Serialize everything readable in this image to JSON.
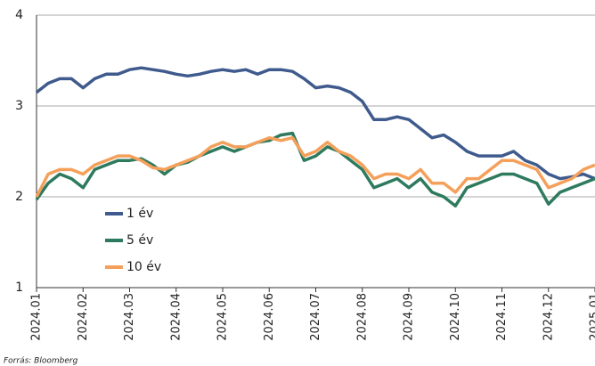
{
  "chart_data": {
    "type": "line",
    "categories": [
      "2024.01",
      null,
      null,
      null,
      "2024.02",
      null,
      null,
      null,
      "2024.03",
      null,
      null,
      null,
      "2024.04",
      null,
      null,
      null,
      "2024.05",
      null,
      null,
      null,
      "2024.06",
      null,
      null,
      null,
      "2024.07",
      null,
      null,
      null,
      "2024.08",
      null,
      null,
      null,
      "2024.09",
      null,
      null,
      null,
      "2024.10",
      null,
      null,
      null,
      "2024.11",
      null,
      null,
      null,
      "2024.12",
      null,
      null,
      null,
      "2025.01"
    ],
    "series": [
      {
        "name": "1 év",
        "color": "#3f5a8c",
        "values": [
          3.15,
          3.25,
          3.3,
          3.3,
          3.2,
          3.3,
          3.35,
          3.35,
          3.4,
          3.42,
          3.4,
          3.38,
          3.35,
          3.33,
          3.35,
          3.38,
          3.4,
          3.38,
          3.4,
          3.35,
          3.4,
          3.4,
          3.38,
          3.3,
          3.2,
          3.22,
          3.2,
          3.15,
          3.05,
          2.85,
          2.85,
          2.88,
          2.85,
          2.75,
          2.65,
          2.68,
          2.6,
          2.5,
          2.45,
          2.45,
          2.45,
          2.5,
          2.4,
          2.35,
          2.25,
          2.2,
          2.22,
          2.25,
          2.2
        ]
      },
      {
        "name": "5 év",
        "color": "#2e7a5e",
        "values": [
          1.97,
          2.15,
          2.25,
          2.2,
          2.1,
          2.3,
          2.35,
          2.4,
          2.4,
          2.42,
          2.35,
          2.25,
          2.35,
          2.38,
          2.45,
          2.5,
          2.55,
          2.5,
          2.55,
          2.6,
          2.62,
          2.68,
          2.7,
          2.4,
          2.45,
          2.55,
          2.5,
          2.4,
          2.3,
          2.1,
          2.15,
          2.2,
          2.1,
          2.2,
          2.05,
          2.0,
          1.9,
          2.1,
          2.15,
          2.2,
          2.25,
          2.25,
          2.2,
          2.15,
          1.92,
          2.05,
          2.1,
          2.15,
          2.2
        ]
      },
      {
        "name": "10 év",
        "color": "#f5a05a",
        "values": [
          2.0,
          2.25,
          2.3,
          2.3,
          2.25,
          2.35,
          2.4,
          2.45,
          2.45,
          2.4,
          2.32,
          2.3,
          2.35,
          2.4,
          2.45,
          2.55,
          2.6,
          2.55,
          2.55,
          2.6,
          2.65,
          2.62,
          2.65,
          2.45,
          2.5,
          2.6,
          2.5,
          2.45,
          2.35,
          2.2,
          2.25,
          2.25,
          2.2,
          2.3,
          2.15,
          2.15,
          2.05,
          2.2,
          2.2,
          2.3,
          2.4,
          2.4,
          2.35,
          2.3,
          2.1,
          2.15,
          2.2,
          2.3,
          2.35
        ]
      }
    ],
    "ylim": [
      1,
      4
    ],
    "yticks": [
      1,
      2,
      3,
      4
    ],
    "grid": true,
    "legend": "left",
    "source": "Forrás: Bloomberg"
  }
}
